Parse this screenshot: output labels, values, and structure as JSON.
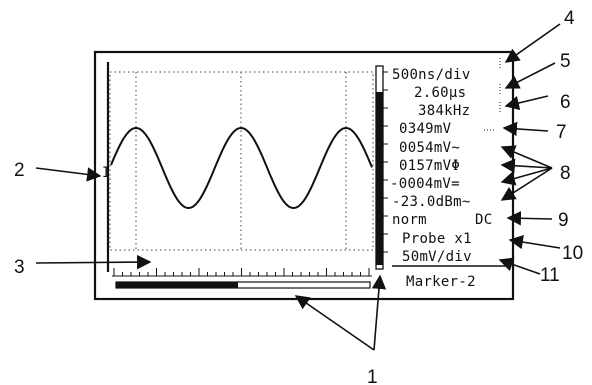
{
  "screen": {
    "readouts": {
      "timebase": "500ns/div",
      "time_marker": "2.60µs",
      "frequency": "384kHz",
      "voltage_1": "0349mV",
      "voltage_2": "0054mV~",
      "voltage_3": "0157mVΦ",
      "voltage_4": "-0004mV=",
      "dbm": "-23.0dBm~",
      "trigger_mode": "norm",
      "coupling": "DC",
      "probe": "Probe x1",
      "vertical_scale": "50mV/div",
      "marker": "Marker-2"
    },
    "markers": {
      "cursor_level": "I"
    }
  },
  "callouts": [
    "1",
    "2",
    "3",
    "4",
    "5",
    "6",
    "7",
    "8",
    "9",
    "10",
    "11"
  ],
  "colors": {
    "ink": "#111111",
    "background": "#ffffff"
  }
}
